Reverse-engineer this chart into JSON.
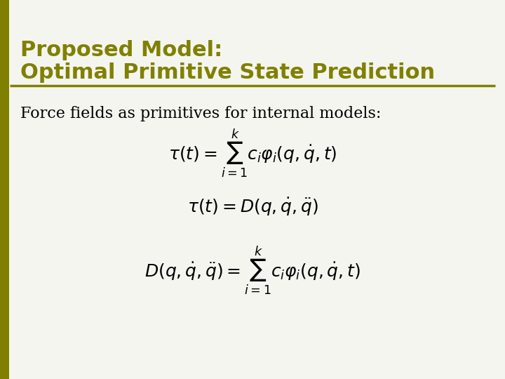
{
  "title_line1": "Proposed Model:",
  "title_line2": "Optimal Primitive State Prediction",
  "title_color": "#808000",
  "background_color": "#f5f5f0",
  "left_bar_color": "#808000",
  "separator_color": "#808000",
  "body_text": "Force fields as primitives for internal models:",
  "body_text_color": "#000000",
  "eq1": "\\tau(t) = \\sum_{i=1}^{k} c_i \\varphi_i(q, \\dot{q}, t)",
  "eq2": "\\tau(t) = D(q, \\dot{q}, \\ddot{q})",
  "eq3": "D(q, \\dot{q}, \\ddot{q}) = \\sum_{i=1}^{k} c_i \\varphi_i(q, \\dot{q}, t)",
  "eq_color": "#000000",
  "figsize": [
    7.2,
    5.4
  ],
  "dpi": 100
}
